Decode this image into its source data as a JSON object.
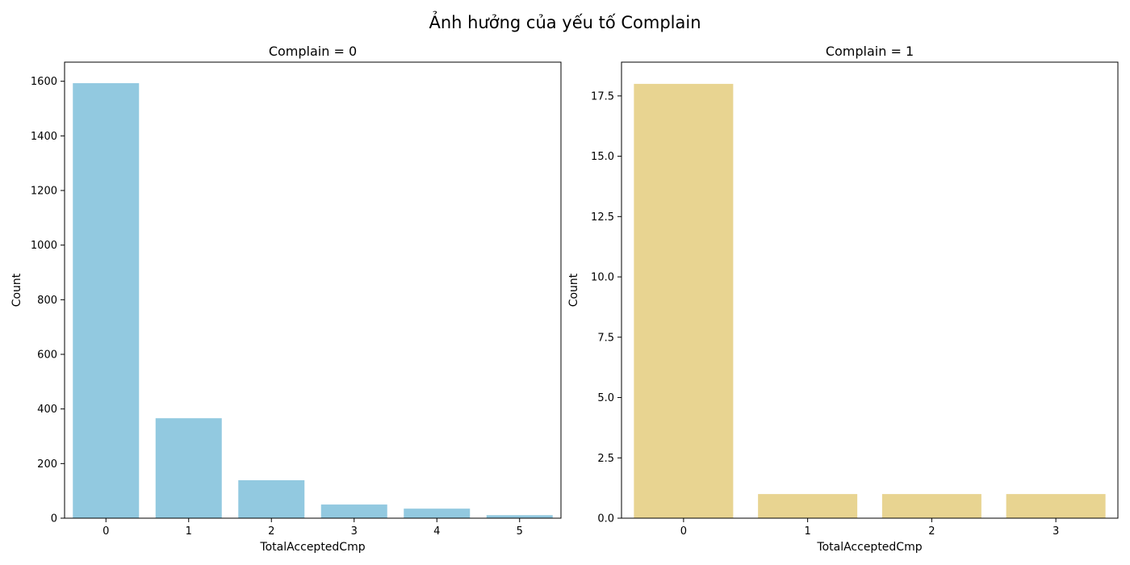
{
  "figure": {
    "suptitle": "Ảnh hưởng của yếu tố Complain"
  },
  "chart_data": [
    {
      "type": "bar",
      "title": "Complain = 0",
      "xlabel": "TotalAcceptedCmp",
      "ylabel": "Count",
      "categories": [
        "0",
        "1",
        "2",
        "3",
        "4",
        "5"
      ],
      "values": [
        1593,
        366,
        139,
        50,
        35,
        11
      ],
      "ylim": [
        0,
        1670
      ],
      "yticks": [
        0,
        200,
        400,
        600,
        800,
        1000,
        1200,
        1400,
        1600
      ],
      "ytick_labels": [
        "0",
        "200",
        "400",
        "600",
        "800",
        "1000",
        "1200",
        "1400",
        "1600"
      ],
      "color": "#92c9e0",
      "grid": false,
      "legend": "none"
    },
    {
      "type": "bar",
      "title": "Complain = 1",
      "xlabel": "TotalAcceptedCmp",
      "ylabel": "Count",
      "categories": [
        "0",
        "1",
        "2",
        "3"
      ],
      "values": [
        18,
        1,
        1,
        1
      ],
      "ylim": [
        0,
        18.9
      ],
      "yticks": [
        0,
        2.5,
        5,
        7.5,
        10,
        12.5,
        15,
        17.5
      ],
      "ytick_labels": [
        "0.0",
        "2.5",
        "5.0",
        "7.5",
        "10.0",
        "12.5",
        "15.0",
        "17.5"
      ],
      "color": "#e8d491",
      "grid": false,
      "legend": "none"
    }
  ]
}
